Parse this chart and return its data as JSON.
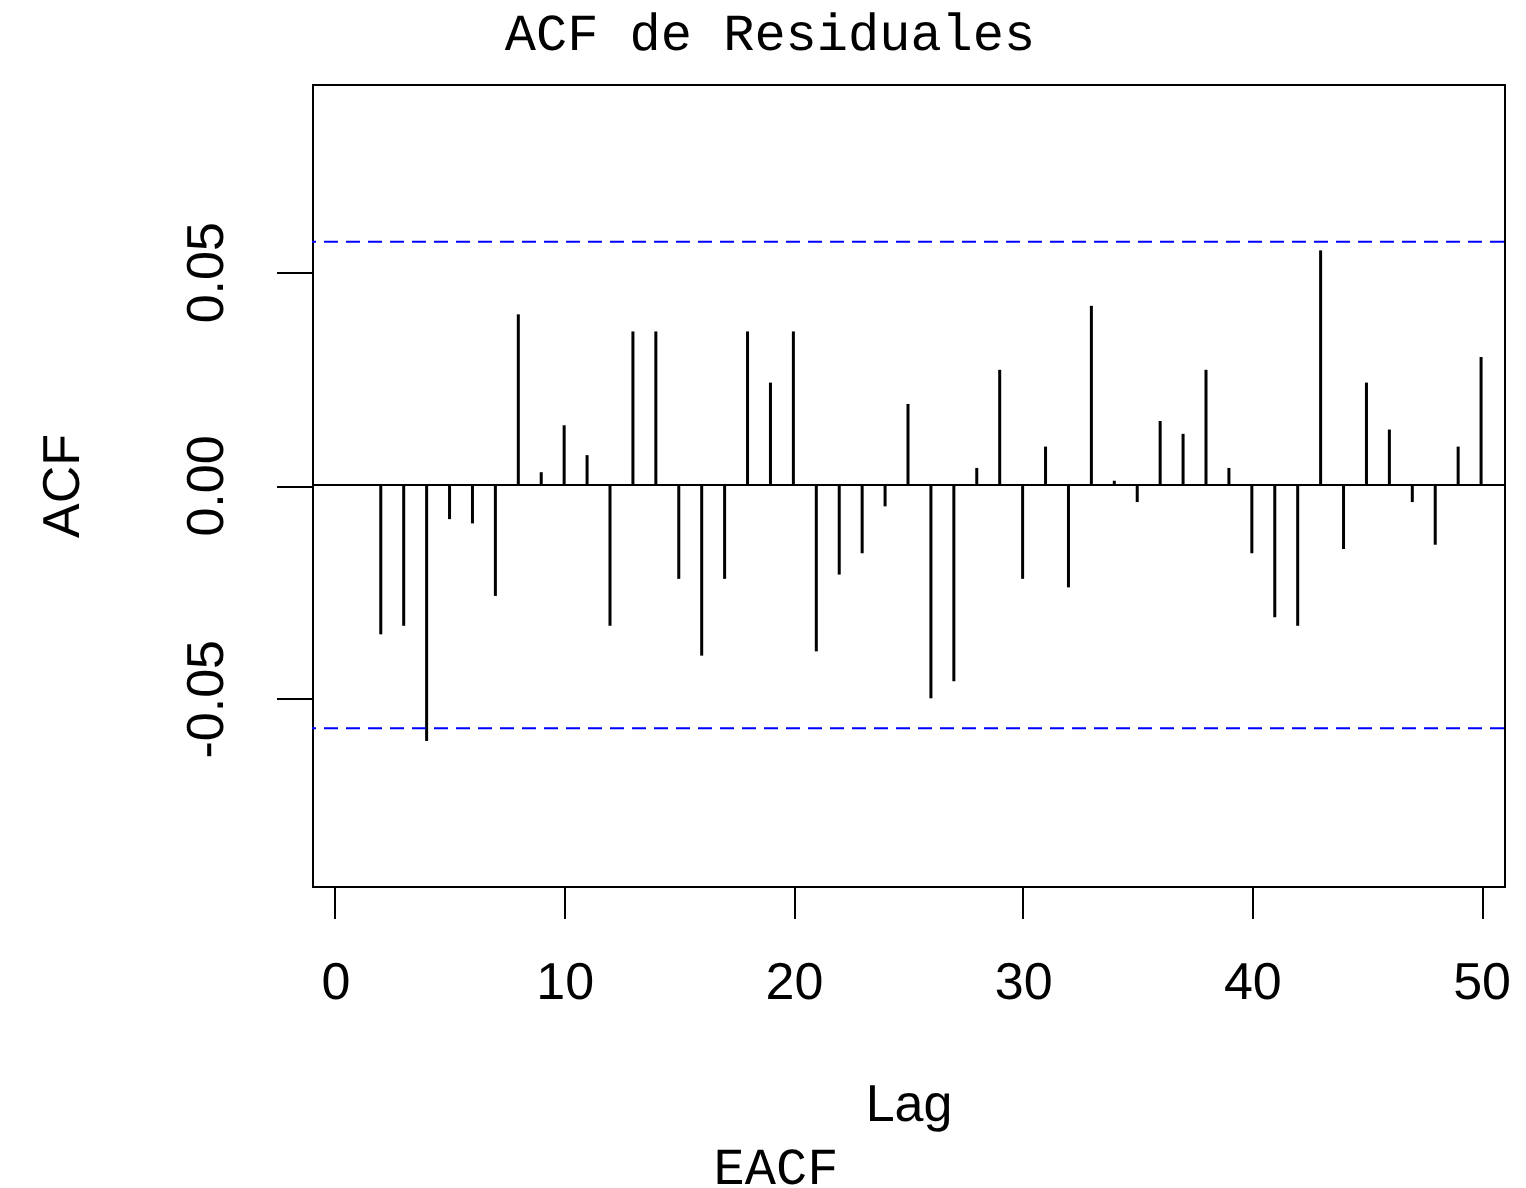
{
  "chart_data": {
    "type": "bar",
    "title": "ACF de Residuales",
    "xlabel": "Lag",
    "ylabel": "ACF",
    "annotations": [
      "EACF"
    ],
    "x": [
      2,
      3,
      4,
      5,
      6,
      7,
      8,
      9,
      10,
      11,
      12,
      13,
      14,
      15,
      16,
      17,
      18,
      19,
      20,
      21,
      22,
      23,
      24,
      25,
      26,
      27,
      28,
      29,
      30,
      31,
      32,
      33,
      34,
      35,
      36,
      37,
      38,
      39,
      40,
      41,
      42,
      43,
      44,
      45,
      46,
      47,
      48,
      49,
      50
    ],
    "values": [
      -0.035,
      -0.033,
      -0.06,
      -0.008,
      -0.009,
      -0.026,
      0.04,
      0.003,
      0.014,
      0.007,
      -0.033,
      0.036,
      0.036,
      -0.022,
      -0.04,
      -0.022,
      0.036,
      0.024,
      0.036,
      -0.039,
      -0.021,
      -0.016,
      -0.005,
      0.019,
      -0.05,
      -0.046,
      0.004,
      0.027,
      -0.022,
      0.009,
      -0.024,
      0.042,
      0.001,
      -0.004,
      0.015,
      0.012,
      0.027,
      0.004,
      -0.016,
      -0.031,
      -0.033,
      0.055,
      -0.015,
      0.024,
      0.013,
      -0.004,
      -0.014,
      0.009,
      0.03
    ],
    "color": "#000000",
    "xlim": [
      -1,
      51
    ],
    "ylim": [
      -0.094,
      0.094
    ],
    "xticks": [
      0,
      10,
      20,
      30,
      40,
      50
    ],
    "yticks": [
      -0.05,
      {
        "value": 0,
        "label": "0.00"
      },
      0.05
    ],
    "ref_lines": [
      {
        "axis": "y",
        "value": 0,
        "color": "#000000",
        "line_style": "solid"
      },
      {
        "axis": "y",
        "value": 0.057,
        "color": "#0000ff",
        "line_style": "dashed"
      },
      {
        "axis": "y",
        "value": -0.057,
        "color": "#0000ff",
        "line_style": "dashed"
      }
    ]
  }
}
